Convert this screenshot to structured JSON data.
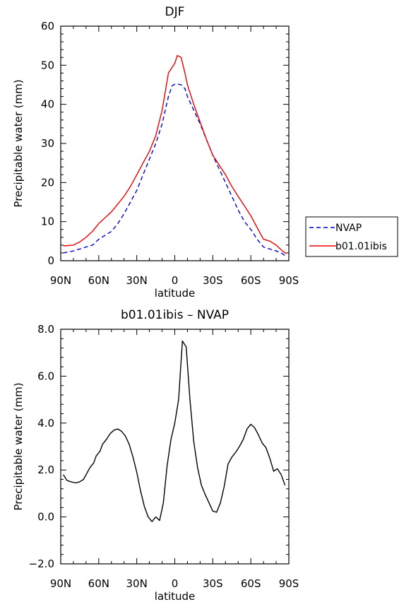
{
  "chart_data": [
    {
      "type": "line",
      "title": "DJF",
      "xlabel": "latitude",
      "ylabel": "Precipitable water (mm)",
      "xlim": [
        90,
        -90
      ],
      "ylim": [
        0,
        60
      ],
      "xticks": [
        90,
        60,
        30,
        0,
        -30,
        -60,
        -90
      ],
      "xticklabels": [
        "90N",
        "60N",
        "30N",
        "0",
        "30S",
        "60S",
        "90S"
      ],
      "yticks": [
        0,
        10,
        20,
        30,
        40,
        50,
        60
      ],
      "yticklabels": [
        "0",
        "10",
        "20",
        "30",
        "40",
        "50",
        "60"
      ],
      "legend_position": "right",
      "series": [
        {
          "name": "NVAP",
          "color": "#0000cc",
          "dash": "dashed",
          "x": [
            88,
            80,
            70,
            65,
            60,
            55,
            50,
            45,
            40,
            35,
            30,
            25,
            20,
            15,
            10,
            5,
            2,
            0,
            -2,
            -5,
            -8,
            -10,
            -15,
            -20,
            -25,
            -30,
            -35,
            -40,
            -45,
            -50,
            -55,
            -60,
            -65,
            -70,
            -75,
            -80,
            -85,
            -88
          ],
          "y": [
            2.0,
            2.5,
            3.5,
            4.0,
            5.5,
            6.5,
            7.5,
            9.5,
            12.0,
            15.0,
            18.0,
            22.0,
            26.0,
            30.0,
            35.0,
            42.0,
            44.8,
            45.1,
            45.2,
            45.0,
            44.0,
            42.0,
            38.5,
            35.0,
            31.0,
            27.0,
            23.5,
            20.0,
            16.5,
            13.0,
            10.0,
            8.0,
            5.5,
            3.5,
            3.0,
            2.5,
            1.8,
            1.0
          ]
        },
        {
          "name": "b01.01ibis",
          "color": "#ee0000",
          "dash": "solid",
          "x": [
            88,
            80,
            75,
            70,
            65,
            60,
            55,
            50,
            45,
            40,
            35,
            30,
            25,
            20,
            15,
            10,
            5,
            2,
            0,
            -2,
            -5,
            -8,
            -10,
            -15,
            -20,
            -25,
            -30,
            -35,
            -40,
            -45,
            -50,
            -55,
            -60,
            -65,
            -70,
            -75,
            -80,
            -85,
            -88
          ],
          "y": [
            3.8,
            4.0,
            4.8,
            6.0,
            7.5,
            9.5,
            11.0,
            12.5,
            14.5,
            16.5,
            19.0,
            22.0,
            25.0,
            28.0,
            32.0,
            38.5,
            48.0,
            49.5,
            50.5,
            52.5,
            52.0,
            48.0,
            45.0,
            40.0,
            35.5,
            31.0,
            27.0,
            24.5,
            22.0,
            19.0,
            16.5,
            14.0,
            11.5,
            8.5,
            5.5,
            5.0,
            4.0,
            2.5,
            1.8
          ]
        }
      ]
    },
    {
      "type": "line",
      "title": "b01.01ibis – NVAP",
      "xlabel": "latitude",
      "ylabel": "Precipitable water (mm)",
      "xlim": [
        90,
        -90
      ],
      "ylim": [
        -2,
        8
      ],
      "xticks": [
        90,
        60,
        30,
        0,
        -30,
        -60,
        -90
      ],
      "xticklabels": [
        "90N",
        "60N",
        "30N",
        "0",
        "30S",
        "60S",
        "90S"
      ],
      "yticks": [
        -2,
        0,
        2,
        4,
        6,
        8
      ],
      "yticklabels": [
        "−2.0",
        "0.0",
        "2.0",
        "4.0",
        "6.0",
        "8.0"
      ],
      "series": [
        {
          "color": "#000000",
          "dash": "solid",
          "x": [
            88,
            85,
            82,
            78,
            75,
            72,
            70,
            67,
            64,
            62,
            59,
            57,
            54,
            51,
            48,
            45,
            42,
            39,
            36,
            33,
            30,
            27,
            24,
            21,
            18,
            15,
            12,
            9,
            6,
            3,
            0,
            -3,
            -6,
            -9,
            -12,
            -15,
            -18,
            -21,
            -24,
            -27,
            -30,
            -33,
            -36,
            -39,
            -42,
            -45,
            -48,
            -51,
            -54,
            -57,
            -60,
            -63,
            -66,
            -69,
            -72,
            -75,
            -78,
            -81,
            -84,
            -87
          ],
          "y": [
            1.8,
            1.55,
            1.5,
            1.45,
            1.5,
            1.6,
            1.8,
            2.1,
            2.3,
            2.6,
            2.8,
            3.1,
            3.3,
            3.55,
            3.7,
            3.75,
            3.65,
            3.45,
            3.1,
            2.55,
            1.9,
            1.1,
            0.45,
            0.0,
            -0.2,
            0.0,
            -0.15,
            0.6,
            2.2,
            3.3,
            4.0,
            5.0,
            7.5,
            7.25,
            5.0,
            3.2,
            2.1,
            1.35,
            0.95,
            0.6,
            0.25,
            0.2,
            0.6,
            1.3,
            2.25,
            2.55,
            2.75,
            3.0,
            3.3,
            3.75,
            3.95,
            3.8,
            3.5,
            3.15,
            2.95,
            2.5,
            1.95,
            2.05,
            1.8,
            1.35
          ]
        }
      ]
    }
  ]
}
